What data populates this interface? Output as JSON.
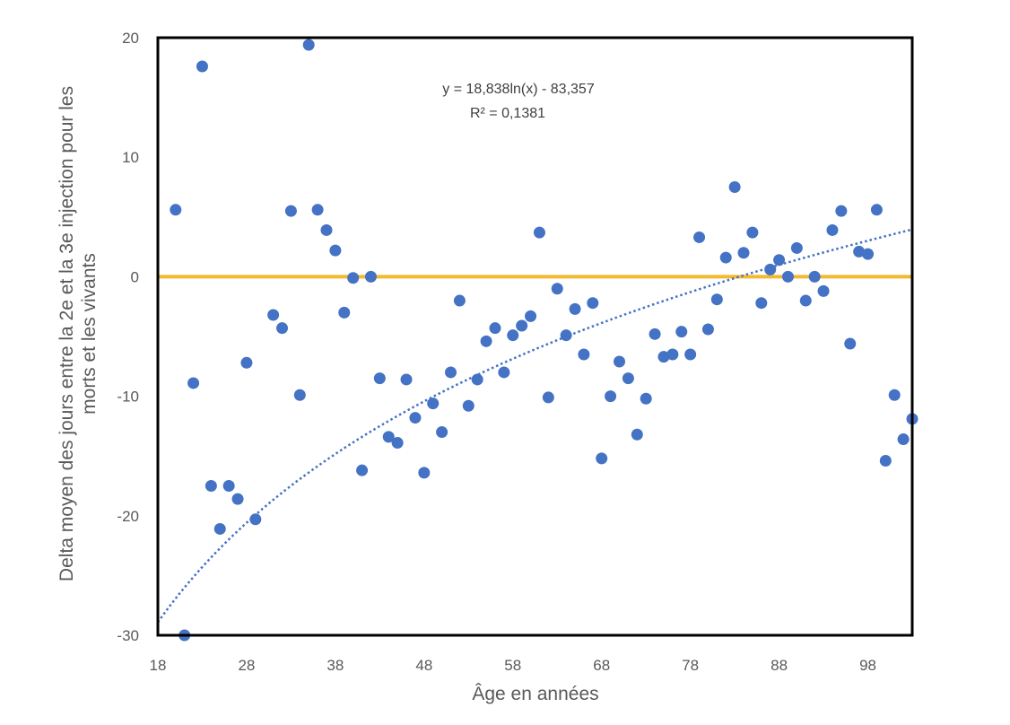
{
  "chart_data": {
    "type": "scatter",
    "xlabel": "Âge en années",
    "ylabel_lines": [
      "Delta moyen des jours entre la 2e et la 3e injection pour les",
      "morts et les vivants"
    ],
    "xlim": [
      18,
      103
    ],
    "ylim": [
      -30,
      20
    ],
    "x_ticks": [
      18,
      28,
      38,
      48,
      58,
      68,
      78,
      88,
      98
    ],
    "y_ticks": [
      -30,
      -20,
      -10,
      0,
      10,
      20
    ],
    "x_tick_labels": [
      "18",
      "28",
      "38",
      "48",
      "58",
      "68",
      "78",
      "88",
      "98"
    ],
    "y_tick_labels": [
      "-30",
      "-20",
      "-10",
      "0",
      "10",
      "20"
    ],
    "colors": {
      "points": "#4472C4",
      "trendline": "#4472C4",
      "reference_line": "#F4B92F",
      "frame": "#000000"
    },
    "reference_line": {
      "y": 0
    },
    "trendline": {
      "type": "logarithmic",
      "a": 18.838,
      "b": -83.357,
      "equation_label": "y = 18,838ln(x) - 83,357",
      "r2_label": "R² = 0,1381"
    },
    "series": [
      {
        "name": "Delta moyen",
        "points": [
          [
            20,
            5.6
          ],
          [
            21,
            -30
          ],
          [
            22,
            -8.9
          ],
          [
            23,
            17.6
          ],
          [
            24,
            -17.5
          ],
          [
            25,
            -21.1
          ],
          [
            26,
            -17.5
          ],
          [
            27,
            -18.6
          ],
          [
            28,
            -7.2
          ],
          [
            29,
            -20.3
          ],
          [
            31,
            -3.2
          ],
          [
            32,
            -4.3
          ],
          [
            33,
            5.5
          ],
          [
            34,
            -9.9
          ],
          [
            35,
            19.4
          ],
          [
            36,
            5.6
          ],
          [
            37,
            3.9
          ],
          [
            38,
            2.2
          ],
          [
            39,
            -3.0
          ],
          [
            40,
            -0.1
          ],
          [
            41,
            -16.2
          ],
          [
            42,
            0
          ],
          [
            43,
            -8.5
          ],
          [
            44,
            -13.4
          ],
          [
            45,
            -13.9
          ],
          [
            46,
            -8.6
          ],
          [
            47,
            -11.8
          ],
          [
            48,
            -16.4
          ],
          [
            49,
            -10.6
          ],
          [
            50,
            -13.0
          ],
          [
            51,
            -8.0
          ],
          [
            52,
            -2.0
          ],
          [
            53,
            -10.8
          ],
          [
            54,
            -8.6
          ],
          [
            55,
            -5.4
          ],
          [
            56,
            -4.3
          ],
          [
            57,
            -8.0
          ],
          [
            58,
            -4.9
          ],
          [
            59,
            -4.1
          ],
          [
            60,
            -3.3
          ],
          [
            61,
            3.7
          ],
          [
            62,
            -10.1
          ],
          [
            63,
            -1.0
          ],
          [
            64,
            -4.9
          ],
          [
            65,
            -2.7
          ],
          [
            66,
            -6.5
          ],
          [
            67,
            -2.2
          ],
          [
            68,
            -15.2
          ],
          [
            69,
            -10.0
          ],
          [
            70,
            -7.1
          ],
          [
            71,
            -8.5
          ],
          [
            72,
            -13.2
          ],
          [
            73,
            -10.2
          ],
          [
            74,
            -4.8
          ],
          [
            75,
            -6.7
          ],
          [
            76,
            -6.5
          ],
          [
            77,
            -4.6
          ],
          [
            78,
            -6.5
          ],
          [
            79,
            3.3
          ],
          [
            80,
            -4.4
          ],
          [
            81,
            -1.9
          ],
          [
            82,
            1.6
          ],
          [
            83,
            7.5
          ],
          [
            84,
            2.0
          ],
          [
            85,
            3.7
          ],
          [
            86,
            -2.2
          ],
          [
            87,
            0.6
          ],
          [
            88,
            1.4
          ],
          [
            89,
            0
          ],
          [
            90,
            2.4
          ],
          [
            91,
            -2.0
          ],
          [
            92,
            0
          ],
          [
            93,
            -1.2
          ],
          [
            94,
            3.9
          ],
          [
            95,
            5.5
          ],
          [
            96,
            -5.6
          ],
          [
            97,
            2.1
          ],
          [
            98,
            1.9
          ],
          [
            99,
            5.6
          ],
          [
            100,
            -15.4
          ],
          [
            101,
            -9.9
          ],
          [
            102,
            -13.6
          ],
          [
            103,
            -11.9
          ]
        ]
      }
    ]
  }
}
